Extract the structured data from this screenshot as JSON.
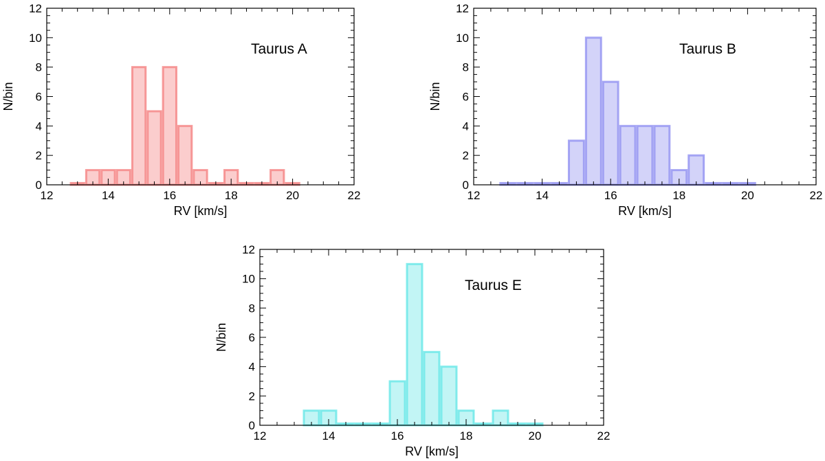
{
  "chart_data": [
    {
      "type": "bar",
      "title": "Taurus A",
      "xlabel": "RV [km/s]",
      "ylabel": "N/bin",
      "xlim": [
        12,
        22
      ],
      "ylim": [
        0,
        12
      ],
      "xticks": [
        12,
        14,
        16,
        18,
        20,
        22
      ],
      "yticks": [
        0,
        2,
        4,
        6,
        8,
        10,
        12
      ],
      "bin_width": 0.5,
      "color": "#f47c7c",
      "bins": [
        {
          "x": 13.0,
          "value": 0
        },
        {
          "x": 13.5,
          "value": 1
        },
        {
          "x": 14.0,
          "value": 1
        },
        {
          "x": 14.5,
          "value": 1
        },
        {
          "x": 15.0,
          "value": 8
        },
        {
          "x": 15.5,
          "value": 5
        },
        {
          "x": 16.0,
          "value": 8
        },
        {
          "x": 16.5,
          "value": 4
        },
        {
          "x": 17.0,
          "value": 1
        },
        {
          "x": 17.5,
          "value": 0
        },
        {
          "x": 18.0,
          "value": 1
        },
        {
          "x": 18.5,
          "value": 0
        },
        {
          "x": 19.0,
          "value": 0
        },
        {
          "x": 19.5,
          "value": 1
        },
        {
          "x": 20.0,
          "value": 0
        }
      ]
    },
    {
      "type": "bar",
      "title": "Taurus B",
      "xlabel": "RV [km/s]",
      "ylabel": "N/bin",
      "xlim": [
        12,
        22
      ],
      "ylim": [
        0,
        12
      ],
      "xticks": [
        12,
        14,
        16,
        18,
        20,
        22
      ],
      "yticks": [
        0,
        2,
        4,
        6,
        8,
        10,
        12
      ],
      "bin_width": 0.5,
      "color": "#8c8cf0",
      "bins": [
        {
          "x": 13.0,
          "value": 0
        },
        {
          "x": 13.5,
          "value": 0
        },
        {
          "x": 14.0,
          "value": 0
        },
        {
          "x": 14.5,
          "value": 0
        },
        {
          "x": 15.0,
          "value": 3
        },
        {
          "x": 15.5,
          "value": 10
        },
        {
          "x": 16.0,
          "value": 7
        },
        {
          "x": 16.5,
          "value": 4
        },
        {
          "x": 17.0,
          "value": 4
        },
        {
          "x": 17.5,
          "value": 4
        },
        {
          "x": 18.0,
          "value": 1
        },
        {
          "x": 18.5,
          "value": 2
        },
        {
          "x": 19.0,
          "value": 0
        },
        {
          "x": 19.5,
          "value": 0
        },
        {
          "x": 20.0,
          "value": 0
        }
      ]
    },
    {
      "type": "bar",
      "title": "Taurus E",
      "xlabel": "RV [km/s]",
      "ylabel": "N/bin",
      "xlim": [
        12,
        22
      ],
      "ylim": [
        0,
        12
      ],
      "xticks": [
        12,
        14,
        16,
        18,
        20,
        22
      ],
      "yticks": [
        0,
        2,
        4,
        6,
        8,
        10,
        12
      ],
      "bin_width": 0.5,
      "color": "#5fe6e6",
      "bins": [
        {
          "x": 13.5,
          "value": 1
        },
        {
          "x": 14.0,
          "value": 1
        },
        {
          "x": 14.5,
          "value": 0
        },
        {
          "x": 15.0,
          "value": 0
        },
        {
          "x": 15.5,
          "value": 0
        },
        {
          "x": 16.0,
          "value": 3
        },
        {
          "x": 16.5,
          "value": 11
        },
        {
          "x": 17.0,
          "value": 5
        },
        {
          "x": 17.5,
          "value": 4
        },
        {
          "x": 18.0,
          "value": 1
        },
        {
          "x": 18.5,
          "value": 0
        },
        {
          "x": 19.0,
          "value": 1
        },
        {
          "x": 19.5,
          "value": 0
        },
        {
          "x": 20.0,
          "value": 0
        }
      ]
    }
  ]
}
